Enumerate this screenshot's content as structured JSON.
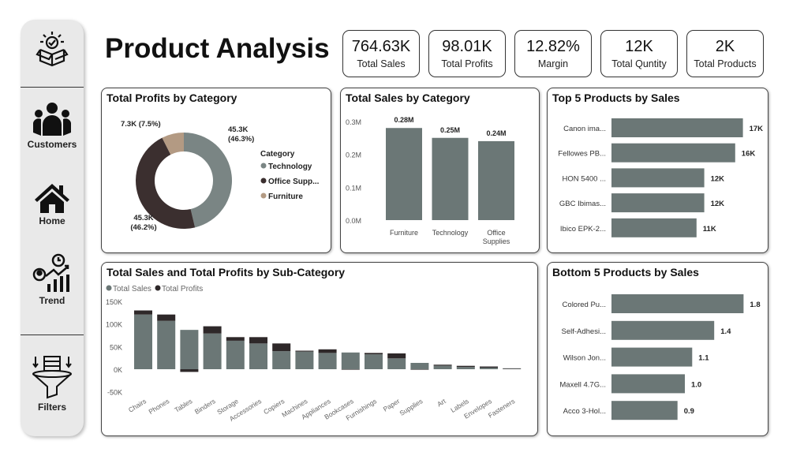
{
  "title": "Product Analysis",
  "sidebar": {
    "items": [
      {
        "label": "Customers",
        "icon": "customers-icon"
      },
      {
        "label": "Home",
        "icon": "home-icon"
      },
      {
        "label": "Trend",
        "icon": "trend-icon"
      },
      {
        "label": "Filters",
        "icon": "filter-icon"
      }
    ],
    "logo": "product-box-check-icon"
  },
  "kpis": [
    {
      "value": "764.63K",
      "label": "Total Sales"
    },
    {
      "value": "98.01K",
      "label": "Total Profits"
    },
    {
      "value": "12.82%",
      "label": "Margin"
    },
    {
      "value": "12K",
      "label": "Total Quntity"
    },
    {
      "value": "2K",
      "label": "Total Products"
    }
  ],
  "colors": {
    "bar": "#6b7776",
    "profit": "#2e2829",
    "technology": "#7a8584",
    "office": "#3b2f2f",
    "furniture": "#b39a83"
  },
  "chart_data": [
    {
      "type": "pie",
      "title": "Total Profits by Category",
      "legend_title": "Category",
      "categories": [
        "Technology",
        "Office Supp...",
        "Furniture"
      ],
      "values": [
        45.3,
        45.3,
        7.3
      ],
      "labels": [
        "45.3K (46.3%)",
        "45.3K (46.2%)",
        "7.3K (7.5%)"
      ],
      "percent": [
        46.3,
        46.2,
        7.5
      ],
      "legend": "right"
    },
    {
      "type": "bar",
      "title": "Total Sales by Category",
      "categories": [
        "Furniture",
        "Technology",
        "Office Supplies"
      ],
      "values": [
        0.28,
        0.25,
        0.24
      ],
      "data_labels": [
        "0.28M",
        "0.25M",
        "0.24M"
      ],
      "yticks": [
        "0.0M",
        "0.1M",
        "0.2M",
        "0.3M"
      ],
      "ylim": [
        0,
        0.3
      ]
    },
    {
      "type": "bar",
      "orientation": "horizontal",
      "title": "Top 5 Products by Sales",
      "categories": [
        "Canon ima...",
        "Fellowes PB...",
        "HON 5400 ...",
        "GBC Ibimas...",
        "Ibico EPK-2..."
      ],
      "values": [
        17,
        16,
        12,
        12,
        11
      ],
      "data_labels": [
        "17K",
        "16K",
        "12K",
        "12K",
        "11K"
      ]
    },
    {
      "type": "bar",
      "stacked": true,
      "title": "Total Sales and Total Profits by Sub-Category",
      "legend": "top-left",
      "yticks": [
        "-50K",
        "0K",
        "50K",
        "100K",
        "150K"
      ],
      "ylim": [
        -50,
        150
      ],
      "categories": [
        "Chairs",
        "Phones",
        "Tables",
        "Binders",
        "Storage",
        "Accessories",
        "Copiers",
        "Machines",
        "Appliances",
        "Bookcases",
        "Furnishings",
        "Paper",
        "Supplies",
        "Art",
        "Labels",
        "Envelopes",
        "Fasteners"
      ],
      "series": [
        {
          "name": "Total Sales",
          "values": [
            121,
            107,
            87,
            79,
            63,
            57,
            40,
            39,
            36,
            37,
            33,
            24,
            14,
            8,
            5,
            3.5,
            1
          ]
        },
        {
          "name": "Total Profits",
          "values": [
            9,
            14,
            -6,
            16,
            8,
            14,
            17,
            2,
            8,
            -1,
            3,
            11,
            -1,
            2,
            2.5,
            2.5,
            1
          ]
        }
      ]
    },
    {
      "type": "bar",
      "orientation": "horizontal",
      "title": "Bottom 5 Products by Sales",
      "categories": [
        "Colored Pu...",
        "Self-Adhesi...",
        "Wilson Jon...",
        "Maxell 4.7G...",
        "Acco 3-Hol..."
      ],
      "values": [
        1.8,
        1.4,
        1.1,
        1.0,
        0.9
      ],
      "data_labels": [
        "1.8",
        "1.4",
        "1.1",
        "1.0",
        "0.9"
      ]
    }
  ]
}
